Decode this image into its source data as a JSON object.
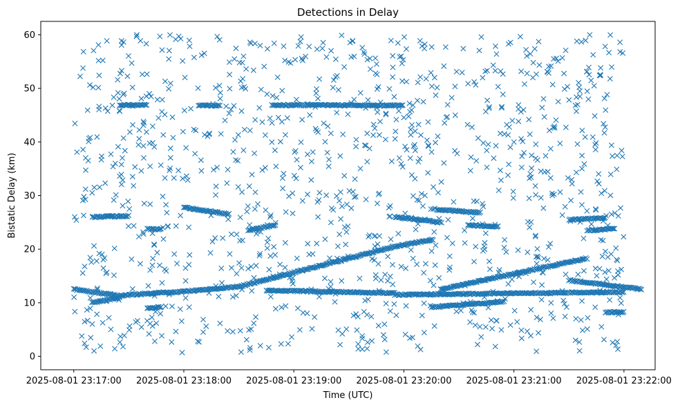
{
  "chart_data": {
    "type": "scatter",
    "title": "Detections in Delay",
    "xlabel": "Time (UTC)",
    "ylabel": "Bistatic Delay (km)",
    "marker": "x",
    "color": "#1f77b4",
    "grid": false,
    "xlim_seconds": [
      -18,
      317
    ],
    "ylim": [
      -2.5,
      62.5
    ],
    "x_ticks": [
      {
        "value": 0,
        "label": "2025-08-01 23:17:00"
      },
      {
        "value": 60,
        "label": "2025-08-01 23:18:00"
      },
      {
        "value": 120,
        "label": "2025-08-01 23:19:00"
      },
      {
        "value": 180,
        "label": "2025-08-01 23:20:00"
      },
      {
        "value": 240,
        "label": "2025-08-01 23:21:00"
      },
      {
        "value": 300,
        "label": "2025-08-01 23:22:00"
      }
    ],
    "y_ticks": [
      0,
      10,
      20,
      30,
      40,
      50,
      60
    ],
    "x_unit": "seconds after 2025-08-01 23:17:00 UTC",
    "tracks": [
      {
        "t": [
          0,
          25
        ],
        "delay": [
          12.5,
          11.3
        ]
      },
      {
        "t": [
          25,
          50
        ],
        "delay": [
          11.3,
          12.0
        ]
      },
      {
        "t": [
          50,
          90
        ],
        "delay": [
          11.8,
          13.0
        ]
      },
      {
        "t": [
          90,
          175
        ],
        "delay": [
          13.0,
          20.5
        ]
      },
      {
        "t": [
          175,
          196
        ],
        "delay": [
          20.5,
          21.8
        ]
      },
      {
        "t": [
          105,
          175
        ],
        "delay": [
          12.3,
          11.8
        ]
      },
      {
        "t": [
          175,
          300
        ],
        "delay": [
          11.5,
          12.0
        ]
      },
      {
        "t": [
          200,
          280
        ],
        "delay": [
          12.5,
          18.3
        ]
      },
      {
        "t": [
          270,
          310
        ],
        "delay": [
          14.2,
          12.5
        ]
      },
      {
        "t": [
          10,
          25
        ],
        "delay": [
          10.0,
          11.0
        ]
      },
      {
        "t": [
          40,
          48
        ],
        "delay": [
          9.0,
          9.2
        ]
      },
      {
        "t": [
          195,
          235
        ],
        "delay": [
          9.2,
          10.2
        ]
      },
      {
        "t": [
          290,
          300
        ],
        "delay": [
          8.2,
          8.3
        ]
      },
      {
        "t": [
          10,
          30
        ],
        "delay": [
          26.0,
          26.2
        ]
      },
      {
        "t": [
          40,
          48
        ],
        "delay": [
          23.8,
          23.7
        ]
      },
      {
        "t": [
          60,
          85
        ],
        "delay": [
          27.8,
          26.5
        ]
      },
      {
        "t": [
          95,
          110
        ],
        "delay": [
          23.5,
          24.5
        ]
      },
      {
        "t": [
          175,
          200
        ],
        "delay": [
          26.0,
          25.0
        ]
      },
      {
        "t": [
          198,
          222
        ],
        "delay": [
          27.4,
          26.8
        ]
      },
      {
        "t": [
          215,
          232
        ],
        "delay": [
          24.5,
          24.2
        ]
      },
      {
        "t": [
          270,
          290
        ],
        "delay": [
          25.5,
          25.8
        ]
      },
      {
        "t": [
          280,
          295
        ],
        "delay": [
          23.5,
          23.8
        ]
      },
      {
        "t": [
          25,
          40
        ],
        "delay": [
          46.9,
          46.9
        ]
      },
      {
        "t": [
          68,
          80
        ],
        "delay": [
          46.8,
          46.8
        ]
      },
      {
        "t": [
          108,
          180
        ],
        "delay": [
          46.9,
          46.8
        ]
      }
    ],
    "scatter_seed": 7,
    "scatter_count": 1150,
    "scatter_x_range": [
      0,
      300
    ],
    "scatter_y_range": [
      0.5,
      60
    ]
  }
}
